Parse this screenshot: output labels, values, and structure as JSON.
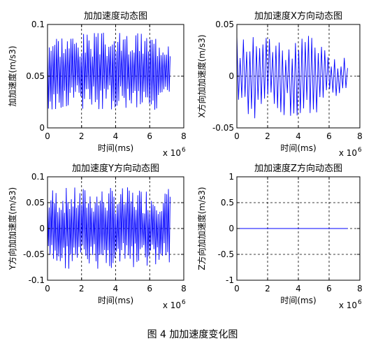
{
  "caption": "图 4  加加速度变化图",
  "chart_data": [
    {
      "type": "line",
      "title": "加加速度动态图",
      "xlabel": "时间(ms)",
      "ylabel": "加加速度(m/s3)",
      "x_multiplier": "x 10",
      "x_exponent": "6",
      "xlim": [
        0,
        8
      ],
      "ylim": [
        0,
        0.1
      ],
      "xticks": [
        "0",
        "2",
        "4",
        "6",
        "8"
      ],
      "yticks": [
        "0",
        "0.05",
        "0.1"
      ],
      "grid": true,
      "color": "#0000ff",
      "x_end": 7.2,
      "signal": {
        "kind": "random",
        "center": 0.055,
        "amp": 0.038,
        "cycles": 68,
        "seed": 3
      }
    },
    {
      "type": "line",
      "title": "加加速度X方向动态图",
      "xlabel": "时间(ms)",
      "ylabel": "X方向加加速度(m/s3)",
      "x_multiplier": "x 10",
      "x_exponent": "6",
      "xlim": [
        0,
        8
      ],
      "ylim": [
        -0.05,
        0.05
      ],
      "xticks": [
        "0",
        "2",
        "4",
        "6",
        "8"
      ],
      "yticks": [
        "-0.05",
        "0",
        "0.05"
      ],
      "grid": true,
      "color": "#0000ff",
      "x_end": 7.2,
      "signal": {
        "kind": "random",
        "center": 0.0,
        "amp": 0.042,
        "cycles": 34,
        "seed": 11,
        "quiet_from": 5.8,
        "quiet_amp": 0.02
      }
    },
    {
      "type": "line",
      "title": "加加速度Y方向动态图",
      "xlabel": "时间(ms)",
      "ylabel": "Y方向加加速度(m/s3)",
      "x_multiplier": "x 10",
      "x_exponent": "6",
      "xlim": [
        0,
        8
      ],
      "ylim": [
        -0.1,
        0.1
      ],
      "xticks": [
        "0",
        "2",
        "4",
        "6",
        "8"
      ],
      "yticks": [
        "-0.1",
        "-0.05",
        "0",
        "0.05",
        "0.1"
      ],
      "grid": true,
      "color": "#0000ff",
      "x_end": 7.2,
      "signal": {
        "kind": "random",
        "center": 0.0,
        "amp": 0.08,
        "cycles": 72,
        "seed": 7
      }
    },
    {
      "type": "line",
      "title": "加加速度Z方向动态图",
      "xlabel": "时间(ms)",
      "ylabel": "Z方向加加速度(m/s3)",
      "x_multiplier": "x 10",
      "x_exponent": "6",
      "xlim": [
        0,
        8
      ],
      "ylim": [
        -1,
        1
      ],
      "xticks": [
        "0",
        "2",
        "4",
        "6",
        "8"
      ],
      "yticks": [
        "-1",
        "-0.5",
        "0",
        "0.5",
        "1"
      ],
      "grid": true,
      "color": "#0000ff",
      "x_end": 7.2,
      "signal": {
        "kind": "constant",
        "value": 0
      }
    }
  ]
}
